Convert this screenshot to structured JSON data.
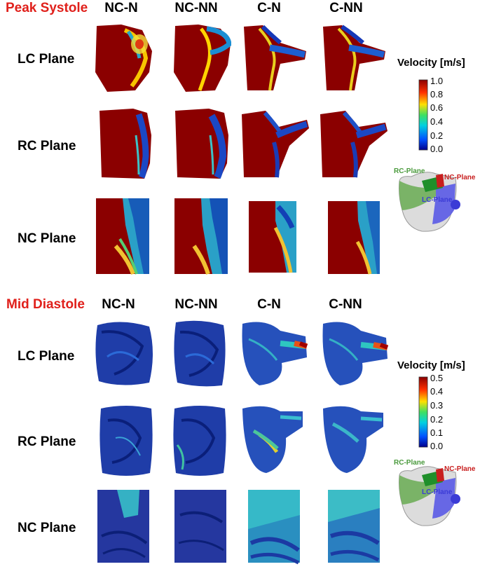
{
  "sections": [
    {
      "title": "Peak Systole",
      "columns": [
        "NC-N",
        "NC-NN",
        "C-N",
        "C-NN"
      ],
      "rows": [
        "LC Plane",
        "RC Plane",
        "NC Plane"
      ],
      "legend": {
        "title": "Velocity [m/s]",
        "ticks": [
          "1.0",
          "0.8",
          "0.6",
          "0.4",
          "0.2",
          "0.0"
        ]
      },
      "schematic": {
        "rc": "RC-Plane",
        "nc": "NC-Plane",
        "lc": "LC-Plane"
      }
    },
    {
      "title": "Mid Diastole",
      "columns": [
        "NC-N",
        "NC-NN",
        "C-N",
        "C-NN"
      ],
      "rows": [
        "LC Plane",
        "RC Plane",
        "NC Plane"
      ],
      "legend": {
        "title": "Velocity [m/s]",
        "ticks": [
          "0.5",
          "0.4",
          "0.3",
          "0.2",
          "0.1",
          "0.0"
        ]
      },
      "schematic": {
        "rc": "RC-Plane",
        "nc": "NC-Plane",
        "lc": "LC-Plane"
      }
    }
  ],
  "colors": {
    "title_red": "#e0201b",
    "high": "#8b0000",
    "low": "#00008b",
    "rc_plane": "#4a9a3c",
    "nc_plane": "#c81e1e",
    "lc_plane": "#3b3bd6"
  }
}
